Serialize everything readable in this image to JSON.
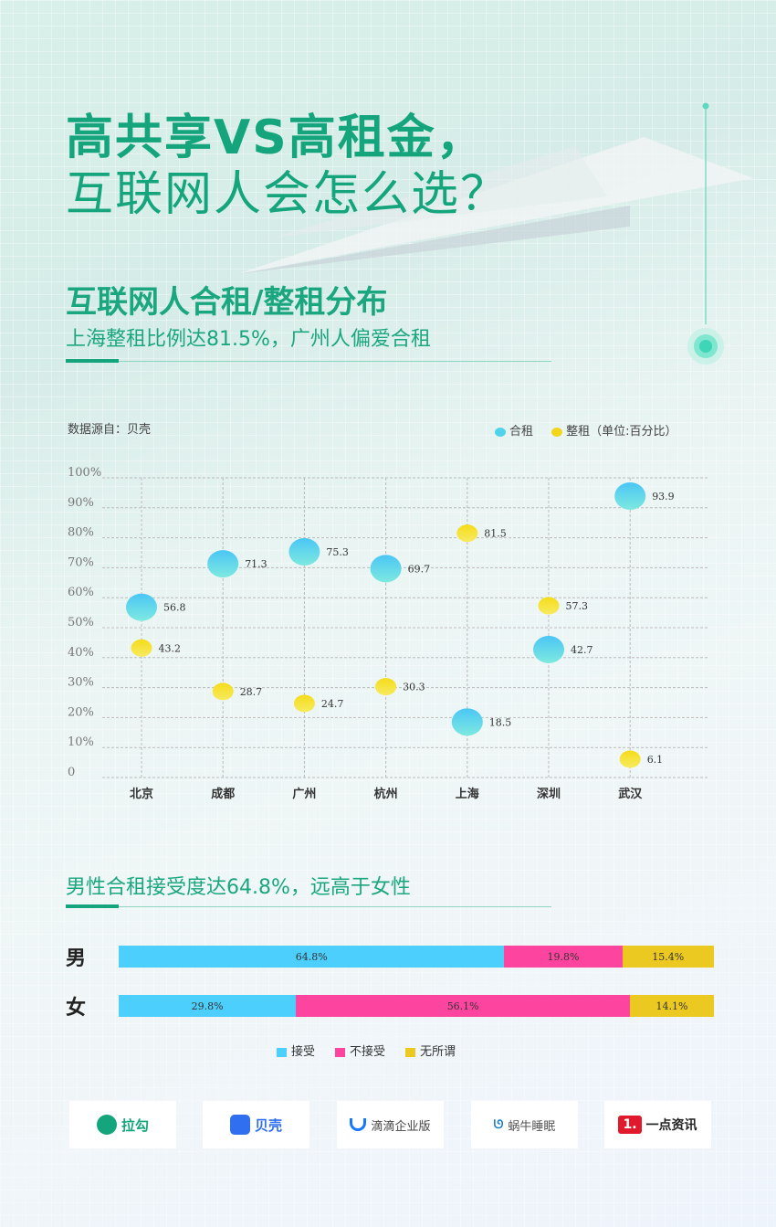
{
  "header": {
    "title_line1": "高共享VS高租金，",
    "title_line2": "互联网人会怎么选？"
  },
  "section1": {
    "heading": "互联网人合租/整租分布",
    "subheading": "上海整租比例达81.5%，广州人偏爱合租",
    "source": "数据源自：贝壳"
  },
  "chart_data": [
    {
      "type": "scatter",
      "categories": [
        "北京",
        "成都",
        "广州",
        "杭州",
        "上海",
        "深圳",
        "武汉"
      ],
      "ylim": [
        0,
        100
      ],
      "yticks": [
        "0",
        "10%",
        "20%",
        "30%",
        "40%",
        "50%",
        "60%",
        "70%",
        "80%",
        "90%",
        "100%"
      ],
      "grid": true,
      "legend_position": "top-right",
      "legend_note": "（单位:百分比）",
      "series": [
        {
          "name": "合租",
          "color": "#4fd3ea",
          "values": [
            56.8,
            71.3,
            75.3,
            69.7,
            18.5,
            42.7,
            93.9
          ]
        },
        {
          "name": "整租",
          "color": "#f2d61c",
          "values": [
            43.2,
            28.7,
            24.7,
            30.3,
            81.5,
            57.3,
            6.1
          ]
        }
      ]
    },
    {
      "type": "bar",
      "orientation": "horizontal-stacked",
      "categories": [
        "男",
        "女"
      ],
      "series": [
        {
          "name": "接受",
          "color": "#4dcffd",
          "values": [
            64.8,
            29.8
          ]
        },
        {
          "name": "不接受",
          "color": "#fd45a0",
          "values": [
            19.8,
            56.1
          ]
        },
        {
          "name": "无所谓",
          "color": "#ecc921",
          "values": [
            15.4,
            14.1
          ]
        }
      ]
    }
  ],
  "section2": {
    "heading": "男性合租接受度达64.8%，远高于女性"
  },
  "logos": [
    "拉勾",
    "贝壳",
    "滴滴企业版",
    "蜗牛睡眠",
    "一点资讯"
  ]
}
